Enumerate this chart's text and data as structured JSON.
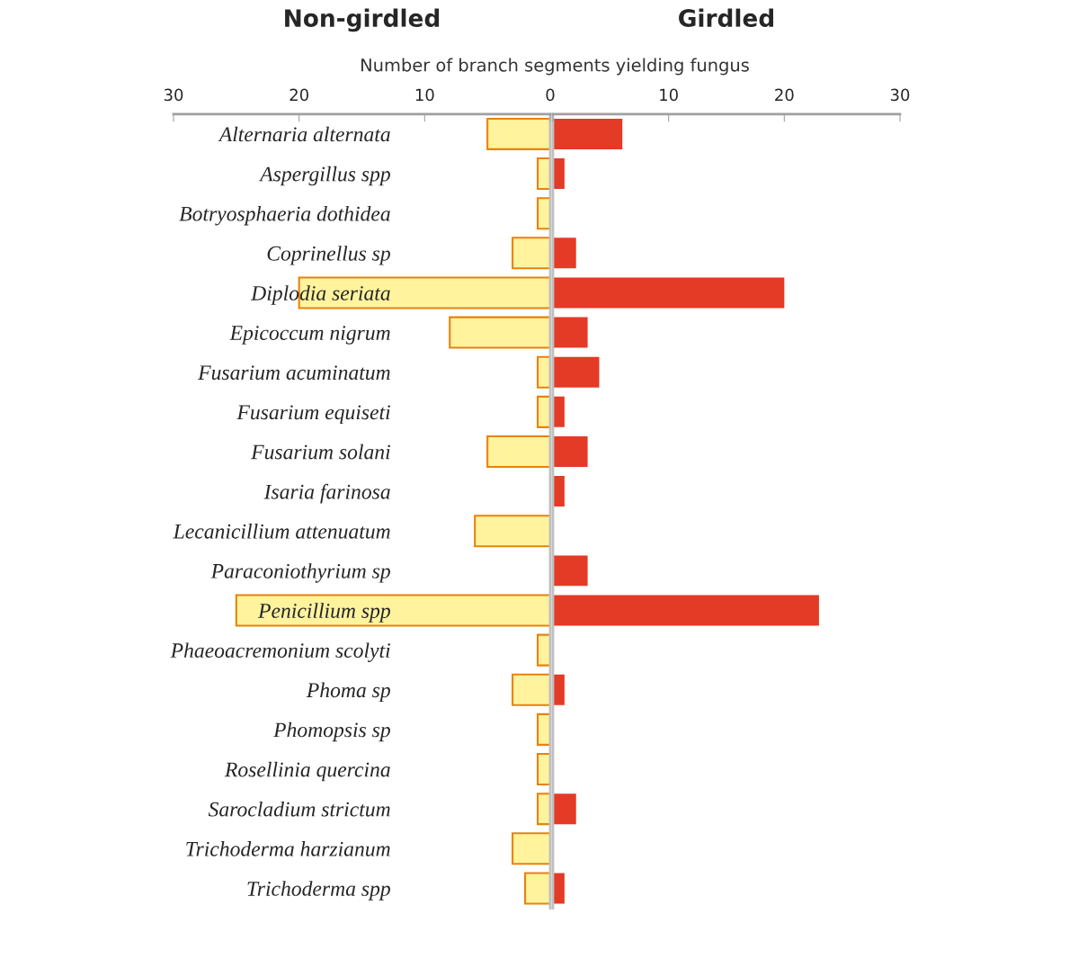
{
  "chart_data": [
    {
      "type": "bar",
      "orientation": "horizontal",
      "title": "Non-girdled",
      "xlabel": "Number of branch segments yielding fungus",
      "categories": [
        "Alternaria alternata",
        "Aspergillus spp",
        "Botryosphaeria dothidea",
        "Coprinellus sp",
        "Diplodia seriata",
        "Epicoccum nigrum",
        "Fusarium acuminatum",
        "Fusarium equiseti",
        "Fusarium solani",
        "Isaria farinosa",
        "Lecanicillium attenuatum",
        "Paraconiothyrium sp",
        "Penicillium spp",
        "Phaeoacremonium scolyti",
        "Phoma sp",
        "Phomopsis sp",
        "Rosellinia quercina",
        "Sarocladium strictum",
        "Trichoderma harzianum",
        "Trichoderma spp"
      ],
      "series": [
        {
          "color": "#fff39e",
          "values": [
            5,
            1,
            1,
            3,
            20,
            8,
            1,
            1,
            5,
            0,
            6,
            0,
            25,
            1,
            3,
            1,
            1,
            1,
            3,
            2
          ]
        }
      ],
      "xlim": [
        30,
        0
      ],
      "xticks": [
        30,
        20,
        10,
        0
      ],
      "grid": false
    },
    {
      "type": "bar",
      "orientation": "horizontal",
      "title": "Girdled",
      "tick_labels": "x",
      "categories": [
        null,
        null,
        null,
        null,
        null,
        null,
        null,
        null,
        null,
        null,
        null,
        null,
        null,
        null,
        null,
        null,
        null,
        null,
        null,
        null
      ],
      "series": [
        {
          "color": "#e33b26",
          "values": [
            6,
            1,
            0,
            2,
            20,
            3,
            4,
            1,
            3,
            1,
            0,
            3,
            23,
            0,
            1,
            0,
            0,
            2,
            0,
            1
          ]
        }
      ],
      "xlim": [
        0,
        30
      ],
      "xticks": [
        {
          "value": 0,
          "label": null
        },
        10,
        20,
        30
      ],
      "grid": false
    }
  ]
}
